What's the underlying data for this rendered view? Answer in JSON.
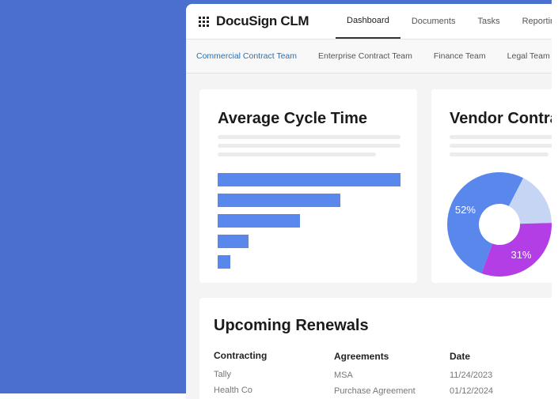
{
  "app": {
    "brand": "DocuSign CLM",
    "brand_icon": "grid-icon"
  },
  "nav": {
    "tabs": [
      {
        "label": "Dashboard",
        "active": true
      },
      {
        "label": "Documents"
      },
      {
        "label": "Tasks"
      },
      {
        "label": "Reporting"
      }
    ]
  },
  "teams": {
    "tabs": [
      {
        "label": "Commercial Contract Team",
        "active": true
      },
      {
        "label": "Enterprise Contract Team"
      },
      {
        "label": "Finance Team"
      },
      {
        "label": "Legal Team"
      }
    ]
  },
  "colors": {
    "background": "#4a6fcf",
    "bar": "#5a87ec",
    "pie_blue": "#5a87ec",
    "pie_purple": "#b43ee6",
    "pie_light": "#c7d5f5",
    "active_team": "#2a6fb0"
  },
  "cycle_card": {
    "title": "Average Cycle Time",
    "chart_data": {
      "type": "bar",
      "orientation": "horizontal",
      "values": [
        1.0,
        0.67,
        0.45,
        0.17,
        0.07
      ]
    }
  },
  "vendor_card": {
    "title": "Vendor Contracts",
    "chart_data": {
      "type": "pie",
      "donut": true,
      "slices": [
        {
          "value": 52,
          "label": "52%",
          "color": "#5a87ec"
        },
        {
          "value": 17,
          "label": "",
          "color": "#c7d5f5"
        },
        {
          "value": 31,
          "label": "31%",
          "color": "#b43ee6"
        }
      ]
    }
  },
  "renewals": {
    "title": "Upcoming Renewals",
    "columns": [
      "Contracting",
      "Agreements",
      "Date"
    ],
    "rows": [
      [
        "Tally",
        "MSA",
        "11/24/2023"
      ],
      [
        "Health Co",
        "Purchase Agreement",
        "01/12/2024"
      ]
    ]
  }
}
